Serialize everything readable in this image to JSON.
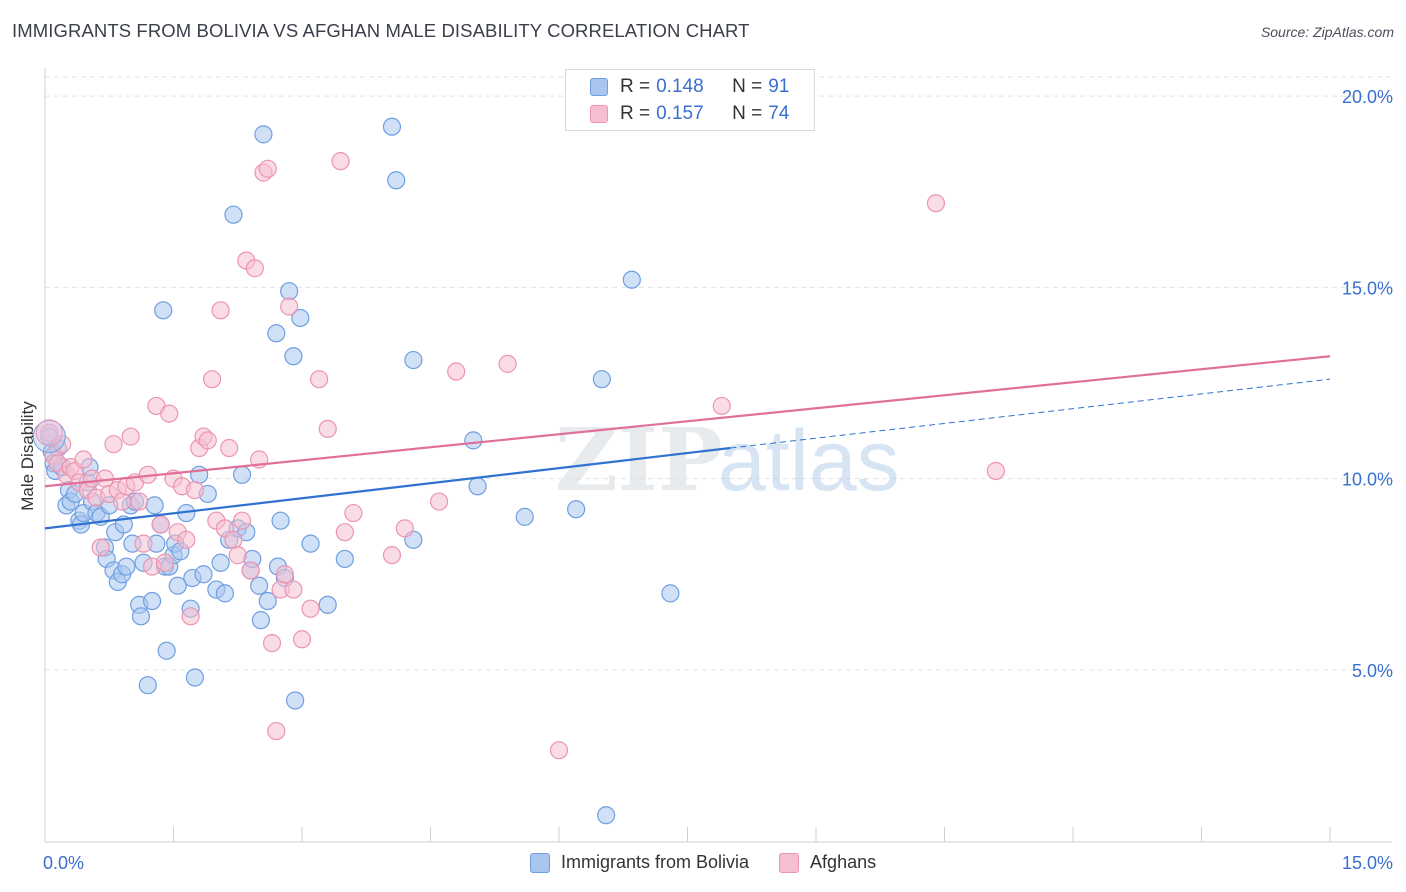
{
  "title": "IMMIGRANTS FROM BOLIVIA VS AFGHAN MALE DISABILITY CORRELATION CHART",
  "source": "Source: ZipAtlas.com",
  "watermark": {
    "zip": "ZIP",
    "atlas": "atlas"
  },
  "colors": {
    "blue_fill": "#a9c6ef",
    "blue_stroke": "#6f9fe0",
    "blue_line": "#2f72d0",
    "pink_fill": "#f6bfd0",
    "pink_stroke": "#ec94b2",
    "pink_line": "#e0709a",
    "tick_label": "#3a6fd0",
    "grid": "#e3e3e3"
  },
  "legend_top": [
    {
      "r_label": "R =",
      "r_value": "0.148",
      "n_label": "N =",
      "n_value": "91"
    },
    {
      "r_label": "R =",
      "r_value": "0.157",
      "n_label": "N =",
      "n_value": "74"
    }
  ],
  "legend_bottom": [
    "Immigrants from Bolivia",
    "Afghans"
  ],
  "chart_data": {
    "type": "scatter",
    "title": "IMMIGRANTS FROM BOLIVIA VS AFGHAN MALE DISABILITY CORRELATION CHART",
    "xlabel": "",
    "ylabel": "Male Disability",
    "xlim": [
      0,
      15
    ],
    "ylim": [
      0.5,
      20.5
    ],
    "x_tick_labels": [
      "0.0%",
      "15.0%"
    ],
    "y_ticks": [
      5,
      10,
      15,
      20
    ],
    "y_tick_labels": [
      "5.0%",
      "10.0%",
      "15.0%",
      "20.0%"
    ],
    "grid": true,
    "legend_position": "top-center",
    "series": [
      {
        "name": "Immigrants from Bolivia",
        "color": "#a9c6ef",
        "stats": {
          "R": 0.148,
          "N": 91
        },
        "trend": {
          "x": [
            0,
            8.0
          ],
          "y": [
            8.7,
            10.8
          ],
          "dashed_to": [
            15.0,
            12.6
          ]
        },
        "points": [
          [
            0.05,
            11.1
          ],
          [
            0.08,
            10.7
          ],
          [
            0.1,
            10.4
          ],
          [
            0.12,
            10.2
          ],
          [
            0.15,
            10.8
          ],
          [
            0.2,
            10.3
          ],
          [
            0.25,
            9.3
          ],
          [
            0.28,
            9.7
          ],
          [
            0.3,
            9.4
          ],
          [
            0.35,
            9.6
          ],
          [
            0.4,
            8.9
          ],
          [
            0.42,
            8.8
          ],
          [
            0.45,
            9.1
          ],
          [
            0.5,
            9.9
          ],
          [
            0.52,
            10.3
          ],
          [
            0.55,
            9.4
          ],
          [
            0.6,
            9.1
          ],
          [
            0.65,
            9.0
          ],
          [
            0.7,
            8.2
          ],
          [
            0.72,
            7.9
          ],
          [
            0.75,
            9.3
          ],
          [
            0.8,
            7.6
          ],
          [
            0.82,
            8.6
          ],
          [
            0.85,
            7.3
          ],
          [
            0.9,
            7.5
          ],
          [
            0.92,
            8.8
          ],
          [
            0.95,
            7.7
          ],
          [
            1.0,
            9.3
          ],
          [
            1.02,
            8.3
          ],
          [
            1.05,
            9.4
          ],
          [
            1.1,
            6.7
          ],
          [
            1.12,
            6.4
          ],
          [
            1.15,
            7.8
          ],
          [
            1.2,
            4.6
          ],
          [
            1.25,
            6.8
          ],
          [
            1.28,
            9.3
          ],
          [
            1.3,
            8.3
          ],
          [
            1.35,
            8.8
          ],
          [
            1.38,
            14.4
          ],
          [
            1.4,
            7.7
          ],
          [
            1.42,
            5.5
          ],
          [
            1.45,
            7.7
          ],
          [
            1.5,
            8.0
          ],
          [
            1.52,
            8.3
          ],
          [
            1.55,
            7.2
          ],
          [
            1.58,
            8.1
          ],
          [
            1.65,
            9.1
          ],
          [
            1.7,
            6.6
          ],
          [
            1.72,
            7.4
          ],
          [
            1.75,
            4.8
          ],
          [
            1.8,
            10.1
          ],
          [
            1.85,
            7.5
          ],
          [
            1.9,
            9.6
          ],
          [
            2.0,
            7.1
          ],
          [
            2.05,
            7.8
          ],
          [
            2.1,
            7.0
          ],
          [
            2.15,
            8.4
          ],
          [
            2.2,
            16.9
          ],
          [
            2.25,
            8.7
          ],
          [
            2.3,
            10.1
          ],
          [
            2.35,
            8.6
          ],
          [
            2.4,
            7.6
          ],
          [
            2.42,
            7.9
          ],
          [
            2.5,
            7.2
          ],
          [
            2.52,
            6.3
          ],
          [
            2.55,
            19.0
          ],
          [
            2.6,
            6.8
          ],
          [
            2.7,
            13.8
          ],
          [
            2.72,
            7.7
          ],
          [
            2.75,
            8.9
          ],
          [
            2.8,
            7.4
          ],
          [
            2.85,
            14.9
          ],
          [
            2.9,
            13.2
          ],
          [
            2.92,
            4.2
          ],
          [
            2.98,
            14.2
          ],
          [
            3.1,
            8.3
          ],
          [
            3.3,
            6.7
          ],
          [
            3.5,
            7.9
          ],
          [
            4.05,
            19.2
          ],
          [
            4.1,
            17.8
          ],
          [
            4.3,
            13.1
          ],
          [
            4.3,
            8.4
          ],
          [
            5.0,
            11.0
          ],
          [
            5.05,
            9.8
          ],
          [
            5.6,
            9.0
          ],
          [
            6.2,
            9.2
          ],
          [
            6.5,
            12.6
          ],
          [
            6.55,
            1.2
          ],
          [
            6.85,
            15.2
          ],
          [
            7.3,
            7.0
          ]
        ]
      },
      {
        "name": "Afghans",
        "color": "#f6bfd0",
        "stats": {
          "R": 0.157,
          "N": 74
        },
        "trend": {
          "x": [
            0,
            15.0
          ],
          "y": [
            9.8,
            13.2
          ]
        },
        "points": [
          [
            0.05,
            11.2
          ],
          [
            0.1,
            10.6
          ],
          [
            0.15,
            10.4
          ],
          [
            0.2,
            10.9
          ],
          [
            0.25,
            10.1
          ],
          [
            0.3,
            10.3
          ],
          [
            0.35,
            10.2
          ],
          [
            0.4,
            9.9
          ],
          [
            0.45,
            10.5
          ],
          [
            0.5,
            9.7
          ],
          [
            0.55,
            10.0
          ],
          [
            0.6,
            9.5
          ],
          [
            0.65,
            8.2
          ],
          [
            0.7,
            10.0
          ],
          [
            0.75,
            9.6
          ],
          [
            0.8,
            10.9
          ],
          [
            0.85,
            9.7
          ],
          [
            0.9,
            9.4
          ],
          [
            0.95,
            9.8
          ],
          [
            1.0,
            11.1
          ],
          [
            1.05,
            9.9
          ],
          [
            1.1,
            9.4
          ],
          [
            1.15,
            8.3
          ],
          [
            1.2,
            10.1
          ],
          [
            1.25,
            7.7
          ],
          [
            1.3,
            11.9
          ],
          [
            1.35,
            8.8
          ],
          [
            1.4,
            7.8
          ],
          [
            1.45,
            11.7
          ],
          [
            1.5,
            10.0
          ],
          [
            1.55,
            8.6
          ],
          [
            1.6,
            9.8
          ],
          [
            1.65,
            8.4
          ],
          [
            1.7,
            6.4
          ],
          [
            1.75,
            9.7
          ],
          [
            1.8,
            10.8
          ],
          [
            1.85,
            11.1
          ],
          [
            1.9,
            11.0
          ],
          [
            1.95,
            12.6
          ],
          [
            2.0,
            8.9
          ],
          [
            2.05,
            14.4
          ],
          [
            2.1,
            8.7
          ],
          [
            2.15,
            10.8
          ],
          [
            2.2,
            8.4
          ],
          [
            2.25,
            8.0
          ],
          [
            2.3,
            8.9
          ],
          [
            2.35,
            15.7
          ],
          [
            2.4,
            7.6
          ],
          [
            2.45,
            15.5
          ],
          [
            2.5,
            10.5
          ],
          [
            2.55,
            18.0
          ],
          [
            2.6,
            18.1
          ],
          [
            2.65,
            5.7
          ],
          [
            2.7,
            3.4
          ],
          [
            2.75,
            7.1
          ],
          [
            2.8,
            7.5
          ],
          [
            2.85,
            14.5
          ],
          [
            2.9,
            7.1
          ],
          [
            3.0,
            5.8
          ],
          [
            3.1,
            6.6
          ],
          [
            3.2,
            12.6
          ],
          [
            3.3,
            11.3
          ],
          [
            3.45,
            18.3
          ],
          [
            3.5,
            8.6
          ],
          [
            3.6,
            9.1
          ],
          [
            4.05,
            8.0
          ],
          [
            4.2,
            8.7
          ],
          [
            4.6,
            9.4
          ],
          [
            4.8,
            12.8
          ],
          [
            5.4,
            13.0
          ],
          [
            6.0,
            2.9
          ],
          [
            7.9,
            11.9
          ],
          [
            10.4,
            17.2
          ],
          [
            11.1,
            10.2
          ]
        ]
      }
    ]
  }
}
